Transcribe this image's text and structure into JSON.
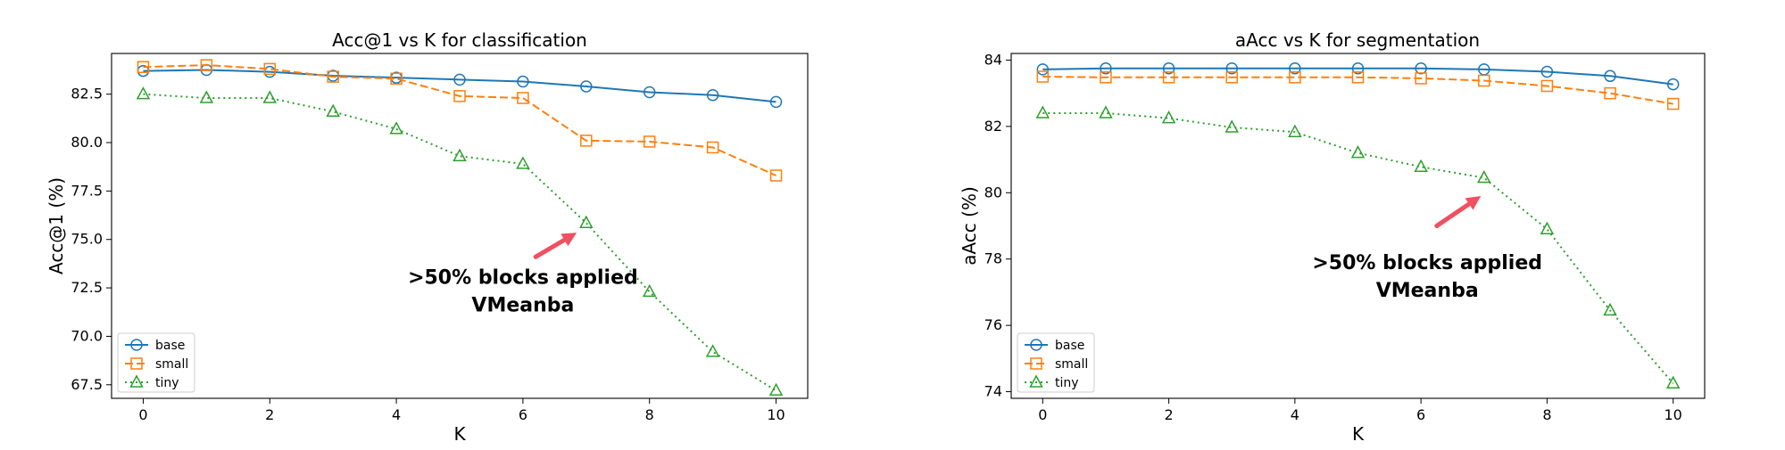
{
  "colors": {
    "base": "#1f77b4",
    "small": "#ff7f0e",
    "tiny": "#2ca02c",
    "arrow": "#f05060"
  },
  "chart_data": [
    {
      "type": "line",
      "title": "Acc@1 vs K for classification",
      "xlabel": "K",
      "ylabel": "Acc@1 (%)",
      "xlim": [
        -0.5,
        10.5
      ],
      "ylim": [
        66.8,
        84.6
      ],
      "xticks": [
        0,
        2,
        4,
        6,
        8,
        10
      ],
      "xtick_labels": [
        "0",
        "2",
        "4",
        "6",
        "8",
        "10"
      ],
      "yticks": [
        67.5,
        70.0,
        72.5,
        75.0,
        77.5,
        80.0,
        82.5
      ],
      "ytick_labels": [
        "67.5",
        "70.0",
        "72.5",
        "75.0",
        "77.5",
        "80.0",
        "82.5"
      ],
      "grid": false,
      "legend_position": "lower-left",
      "x": [
        0,
        1,
        2,
        3,
        4,
        5,
        6,
        7,
        8,
        9,
        10
      ],
      "series": [
        {
          "name": "base",
          "marker": "circle",
          "style": "solid",
          "values": [
            83.7,
            83.75,
            83.65,
            83.45,
            83.35,
            83.25,
            83.15,
            82.9,
            82.6,
            82.45,
            82.1
          ]
        },
        {
          "name": "small",
          "marker": "square",
          "style": "dashed",
          "values": [
            83.9,
            84.0,
            83.8,
            83.4,
            83.3,
            82.4,
            82.3,
            80.1,
            80.05,
            79.75,
            78.3
          ]
        },
        {
          "name": "tiny",
          "marker": "triangle",
          "style": "dotted",
          "values": [
            82.5,
            82.3,
            82.3,
            81.6,
            80.7,
            79.3,
            78.9,
            75.85,
            72.3,
            69.2,
            67.2
          ]
        }
      ],
      "annotation": {
        "lines": [
          ">50% blocks applied",
          "VMeanba"
        ],
        "text_at": [
          6,
          72.7
        ],
        "arrow_from": [
          6.2,
          74.1
        ],
        "arrow_to": [
          6.85,
          75.35
        ]
      }
    },
    {
      "type": "line",
      "title": "aAcc vs K for segmentation",
      "xlabel": "K",
      "ylabel": "aAcc (%)",
      "xlim": [
        -0.5,
        10.5
      ],
      "ylim": [
        73.8,
        84.2
      ],
      "xticks": [
        0,
        2,
        4,
        6,
        8,
        10
      ],
      "xtick_labels": [
        "0",
        "2",
        "4",
        "6",
        "8",
        "10"
      ],
      "yticks": [
        74,
        76,
        78,
        80,
        82,
        84
      ],
      "ytick_labels": [
        "74",
        "76",
        "78",
        "80",
        "82",
        "84"
      ],
      "grid": false,
      "legend_position": "lower-left",
      "x": [
        0,
        1,
        2,
        3,
        4,
        5,
        6,
        7,
        8,
        9,
        10
      ],
      "series": [
        {
          "name": "base",
          "marker": "circle",
          "style": "solid",
          "values": [
            83.72,
            83.75,
            83.75,
            83.75,
            83.75,
            83.75,
            83.75,
            83.72,
            83.65,
            83.52,
            83.27
          ]
        },
        {
          "name": "small",
          "marker": "square",
          "style": "dashed",
          "values": [
            83.5,
            83.48,
            83.48,
            83.48,
            83.48,
            83.48,
            83.45,
            83.38,
            83.22,
            83.0,
            82.68
          ]
        },
        {
          "name": "tiny",
          "marker": "triangle",
          "style": "dotted",
          "values": [
            82.4,
            82.4,
            82.25,
            81.97,
            81.83,
            81.2,
            80.78,
            80.45,
            78.9,
            76.45,
            74.25
          ]
        }
      ],
      "annotation": {
        "lines": [
          ">50% blocks applied",
          "VMeanba"
        ],
        "text_at": [
          6.1,
          77.7
        ],
        "arrow_from": [
          6.25,
          79.0
        ],
        "arrow_to": [
          6.95,
          79.9
        ]
      }
    }
  ]
}
